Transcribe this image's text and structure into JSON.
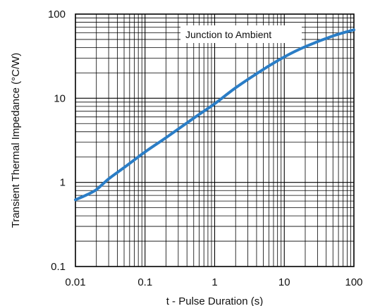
{
  "chart_data": {
    "type": "line",
    "xscale": "log",
    "yscale": "log",
    "xlim": [
      0.01,
      100
    ],
    "ylim": [
      0.1,
      100
    ],
    "grid": true,
    "xlabel": "t - Pulse Duration (s)",
    "ylabel": "Transient Thermal Impedance (°C/W)",
    "x_ticks": [
      "0.01",
      "0.1",
      "1",
      "10",
      "100"
    ],
    "y_ticks": [
      "0.1",
      "1",
      "10",
      "100"
    ],
    "legend_placement": "top-right",
    "line_color": "#2a7dc6",
    "series": [
      {
        "name": "Junction to Ambient",
        "x": [
          0.01,
          0.015,
          0.02,
          0.03,
          0.05,
          0.1,
          0.2,
          0.5,
          1,
          2,
          5,
          10,
          20,
          50,
          100
        ],
        "y": [
          0.62,
          0.72,
          0.82,
          1.1,
          1.5,
          2.3,
          3.4,
          5.8,
          8.6,
          13.3,
          22,
          31,
          41,
          55,
          65
        ]
      }
    ]
  }
}
